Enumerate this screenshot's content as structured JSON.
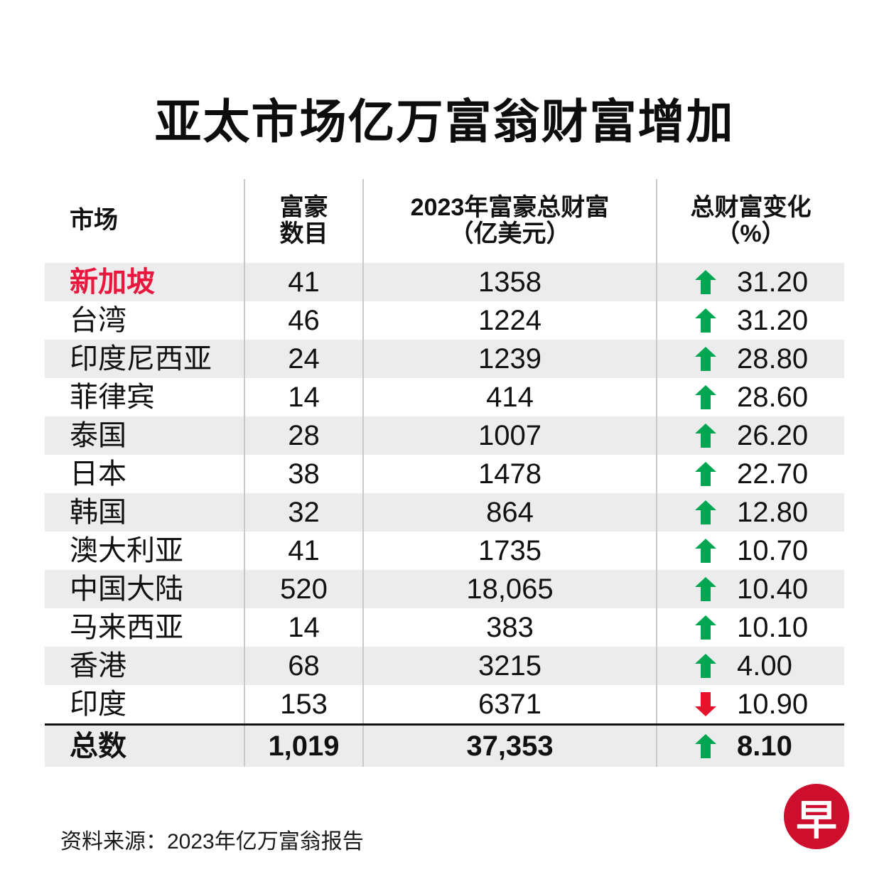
{
  "title": "亚太市场亿万富翁财富增加",
  "source": "资料来源：2023年亿万富翁报告",
  "logo": {
    "char": "早"
  },
  "colors": {
    "up_green": "#00a651",
    "down_red": "#e6132d",
    "highlight_red": "#e8173d",
    "stripe_gray": "#ececec",
    "logo_red": "#ce0e2d"
  },
  "table": {
    "headers": {
      "market": "市场",
      "count": "富豪\n数目",
      "wealth": "2023年富豪总财富\n（亿美元）",
      "change": "总财富变化\n（%）"
    },
    "rows": [
      {
        "market": "新加坡",
        "count": "41",
        "wealth": "1358",
        "change": "31.20",
        "direction": "up",
        "highlight": true
      },
      {
        "market": "台湾",
        "count": "46",
        "wealth": "1224",
        "change": "31.20",
        "direction": "up"
      },
      {
        "market": "印度尼西亚",
        "count": "24",
        "wealth": "1239",
        "change": "28.80",
        "direction": "up"
      },
      {
        "market": "菲律宾",
        "count": "14",
        "wealth": "414",
        "change": "28.60",
        "direction": "up"
      },
      {
        "market": "泰国",
        "count": "28",
        "wealth": "1007",
        "change": "26.20",
        "direction": "up"
      },
      {
        "market": "日本",
        "count": "38",
        "wealth": "1478",
        "change": "22.70",
        "direction": "up"
      },
      {
        "market": "韩国",
        "count": "32",
        "wealth": "864",
        "change": "12.80",
        "direction": "up"
      },
      {
        "market": "澳大利亚",
        "count": "41",
        "wealth": "1735",
        "change": "10.70",
        "direction": "up"
      },
      {
        "market": "中国大陆",
        "count": "520",
        "wealth": "18,065",
        "change": "10.40",
        "direction": "up"
      },
      {
        "market": "马来西亚",
        "count": "14",
        "wealth": "383",
        "change": "10.10",
        "direction": "up"
      },
      {
        "market": "香港",
        "count": "68",
        "wealth": "3215",
        "change": "4.00",
        "direction": "up"
      },
      {
        "market": "印度",
        "count": "153",
        "wealth": "6371",
        "change": "10.90",
        "direction": "down"
      }
    ],
    "total": {
      "market": "总数",
      "count": "1,019",
      "wealth": "37,353",
      "change": "8.10",
      "direction": "up"
    }
  },
  "chart_data": {
    "type": "table",
    "title": "亚太市场亿万富翁财富增加",
    "columns": [
      "市场",
      "富豪数目",
      "2023年富豪总财富（亿美元）",
      "总财富变化（%）"
    ],
    "rows": [
      [
        "新加坡",
        41,
        1358,
        "+31.20%"
      ],
      [
        "台湾",
        46,
        1224,
        "+31.20%"
      ],
      [
        "印度尼西亚",
        24,
        1239,
        "+28.80%"
      ],
      [
        "菲律宾",
        14,
        414,
        "+28.60%"
      ],
      [
        "泰国",
        28,
        1007,
        "+26.20%"
      ],
      [
        "日本",
        38,
        1478,
        "+22.70%"
      ],
      [
        "韩国",
        32,
        864,
        "+12.80%"
      ],
      [
        "澳大利亚",
        41,
        1735,
        "+10.70%"
      ],
      [
        "中国大陆",
        520,
        18065,
        "+10.40%"
      ],
      [
        "马来西亚",
        14,
        383,
        "+10.10%"
      ],
      [
        "香港",
        68,
        3215,
        "+4.00%"
      ],
      [
        "印度",
        153,
        6371,
        "-10.90%"
      ]
    ],
    "total_row": [
      "总数",
      1019,
      37353,
      "+8.10%"
    ],
    "source": "资料来源：2023年亿万富翁报告",
    "highlighted_row": "新加坡"
  }
}
